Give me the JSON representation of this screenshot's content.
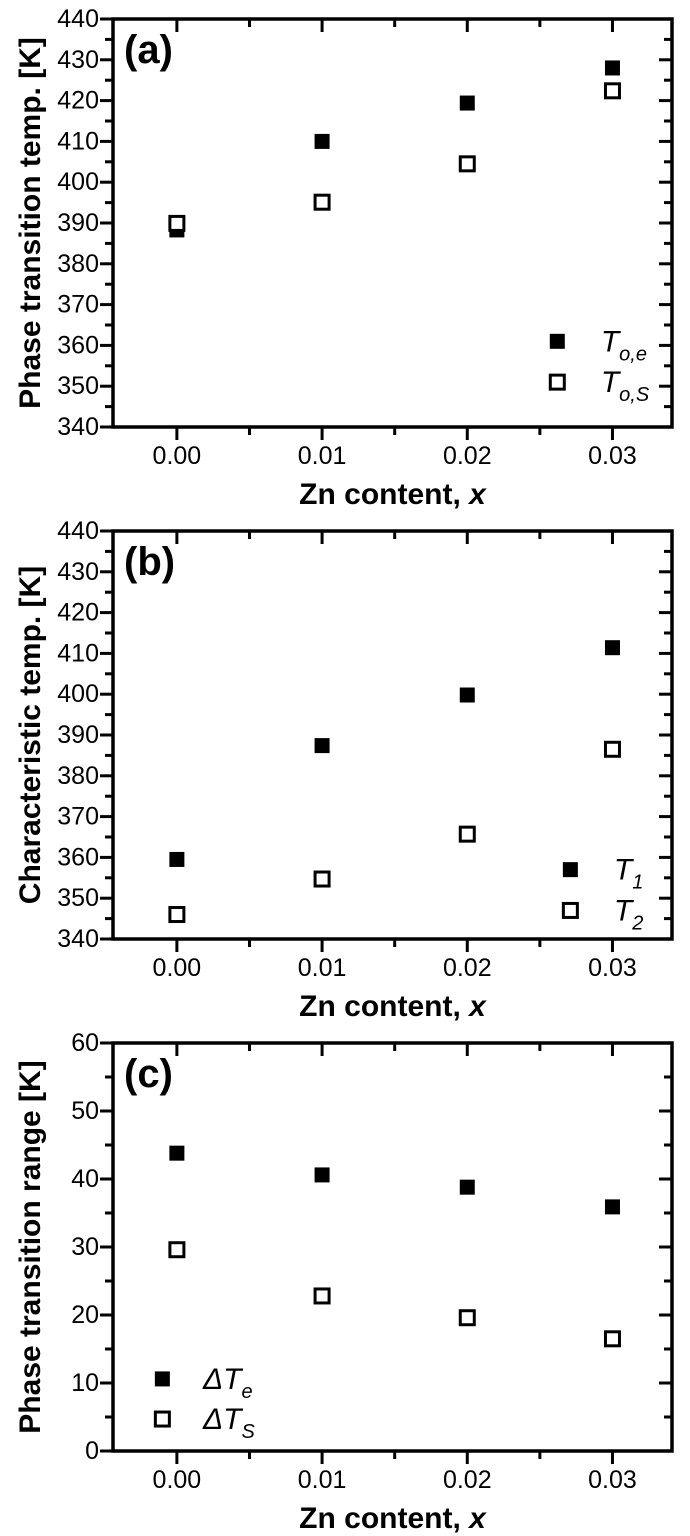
{
  "page": {
    "background": "#ffffff",
    "foreground": "#000000"
  },
  "chart_data": [
    {
      "id": "a",
      "type": "scatter",
      "panel_label": "(a)",
      "ylabel": "Phase transition temp. [K]",
      "xlabel": {
        "text": "Zn content, ",
        "italic_suffix": "x"
      },
      "xlim": [
        -0.0044,
        0.0341
      ],
      "ylim": [
        340,
        440
      ],
      "grid": false,
      "legend_position": "lower right",
      "xticks": [
        {
          "v": 0.0,
          "label": "0.00"
        },
        {
          "v": 0.01,
          "label": "0.01"
        },
        {
          "v": 0.02,
          "label": "0.02"
        },
        {
          "v": 0.03,
          "label": "0.03"
        }
      ],
      "xminorticks": [
        0.005,
        0.015,
        0.025
      ],
      "yticks": [
        {
          "v": 340,
          "label": "340"
        },
        {
          "v": 350,
          "label": "350"
        },
        {
          "v": 360,
          "label": "360"
        },
        {
          "v": 370,
          "label": "370"
        },
        {
          "v": 380,
          "label": "380"
        },
        {
          "v": 390,
          "label": "390"
        },
        {
          "v": 400,
          "label": "400"
        },
        {
          "v": 410,
          "label": "410"
        },
        {
          "v": 420,
          "label": "420"
        },
        {
          "v": 430,
          "label": "430"
        },
        {
          "v": 440,
          "label": "440"
        }
      ],
      "yminorticks": [
        345,
        355,
        365,
        375,
        385,
        395,
        405,
        415,
        425,
        435
      ],
      "series": [
        {
          "name": "To,e",
          "marker": "filled-square",
          "legend_main": "T",
          "legend_sub": "o,e",
          "x": [
            0.0,
            0.01,
            0.02,
            0.03
          ],
          "y": [
            388.3,
            410.0,
            419.4,
            428.0
          ]
        },
        {
          "name": "To,S",
          "marker": "open-square",
          "legend_main": "T",
          "legend_sub": "o,S",
          "x": [
            0.0,
            0.01,
            0.02,
            0.03
          ],
          "y": [
            389.9,
            395.1,
            404.5,
            422.4
          ]
        }
      ],
      "legend": {
        "marker_x": 0.0262,
        "label_x": 0.0292,
        "entry_y": [
          361,
          351
        ]
      }
    },
    {
      "id": "b",
      "type": "scatter",
      "panel_label": "(b)",
      "ylabel": "Characteristic temp. [K]",
      "xlabel": {
        "text": "Zn content, ",
        "italic_suffix": "x"
      },
      "xlim": [
        -0.0044,
        0.0341
      ],
      "ylim": [
        340,
        440
      ],
      "grid": false,
      "legend_position": "lower right",
      "xticks": [
        {
          "v": 0.0,
          "label": "0.00"
        },
        {
          "v": 0.01,
          "label": "0.01"
        },
        {
          "v": 0.02,
          "label": "0.02"
        },
        {
          "v": 0.03,
          "label": "0.03"
        }
      ],
      "xminorticks": [
        0.005,
        0.015,
        0.025
      ],
      "yticks": [
        {
          "v": 340,
          "label": "340"
        },
        {
          "v": 350,
          "label": "350"
        },
        {
          "v": 360,
          "label": "360"
        },
        {
          "v": 370,
          "label": "370"
        },
        {
          "v": 380,
          "label": "380"
        },
        {
          "v": 390,
          "label": "390"
        },
        {
          "v": 400,
          "label": "400"
        },
        {
          "v": 410,
          "label": "410"
        },
        {
          "v": 420,
          "label": "420"
        },
        {
          "v": 430,
          "label": "430"
        },
        {
          "v": 440,
          "label": "440"
        }
      ],
      "yminorticks": [
        345,
        355,
        365,
        375,
        385,
        395,
        405,
        415,
        425,
        435
      ],
      "series": [
        {
          "name": "T1",
          "marker": "filled-square",
          "legend_main": "T",
          "legend_sub": "1",
          "x": [
            0.0,
            0.01,
            0.02,
            0.03
          ],
          "y": [
            359.5,
            387.4,
            399.8,
            411.4
          ]
        },
        {
          "name": "T2",
          "marker": "open-square",
          "legend_main": "T",
          "legend_sub": "2",
          "x": [
            0.0,
            0.01,
            0.02,
            0.03
          ],
          "y": [
            346.0,
            354.7,
            365.7,
            386.5
          ]
        }
      ],
      "legend": {
        "marker_x": 0.0271,
        "label_x": 0.0301,
        "entry_y": [
          357,
          347
        ]
      }
    },
    {
      "id": "c",
      "type": "scatter",
      "panel_label": "(c)",
      "ylabel": "Phase transition range [K]",
      "xlabel": {
        "text": "Zn content, ",
        "italic_suffix": "x"
      },
      "xlim": [
        -0.0044,
        0.0341
      ],
      "ylim": [
        0,
        60
      ],
      "grid": false,
      "legend_position": "lower left",
      "xticks": [
        {
          "v": 0.0,
          "label": "0.00"
        },
        {
          "v": 0.01,
          "label": "0.01"
        },
        {
          "v": 0.02,
          "label": "0.02"
        },
        {
          "v": 0.03,
          "label": "0.03"
        }
      ],
      "xminorticks": [
        0.005,
        0.015,
        0.025
      ],
      "yticks": [
        {
          "v": 0,
          "label": "0"
        },
        {
          "v": 10,
          "label": "10"
        },
        {
          "v": 20,
          "label": "20"
        },
        {
          "v": 30,
          "label": "30"
        },
        {
          "v": 40,
          "label": "40"
        },
        {
          "v": 50,
          "label": "50"
        },
        {
          "v": 60,
          "label": "60"
        }
      ],
      "yminorticks": [
        5,
        15,
        25,
        35,
        45,
        55
      ],
      "series": [
        {
          "name": "dTe",
          "marker": "filled-square",
          "legend_main": "ΔT",
          "legend_sub": "e",
          "x": [
            0.0,
            0.01,
            0.02,
            0.03
          ],
          "y": [
            43.8,
            40.6,
            38.8,
            35.9
          ]
        },
        {
          "name": "dTS",
          "marker": "open-square",
          "legend_main": "ΔT",
          "legend_sub": "S",
          "x": [
            0.0,
            0.01,
            0.02,
            0.03
          ],
          "y": [
            29.6,
            22.8,
            19.6,
            16.5
          ]
        }
      ],
      "legend": {
        "marker_x": -0.001,
        "label_x": 0.0018,
        "entry_y": [
          10.6,
          4.7
        ]
      }
    }
  ]
}
